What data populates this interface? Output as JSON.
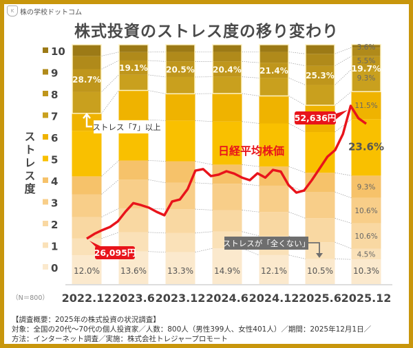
{
  "logo": {
    "text": "株の学校ドットコム"
  },
  "title": "株式投資のストレス度の移り変わり",
  "chart_data": {
    "type": "bar",
    "stacked": true,
    "unit": "%",
    "categories": [
      "2022.12",
      "2023.6",
      "2023.12",
      "2024.6",
      "2024.12",
      "2025.6",
      "2025.12"
    ],
    "legend_title": "ストレス度",
    "levels": [
      "0",
      "1",
      "2",
      "3",
      "4",
      "5",
      "6",
      "7",
      "8",
      "9",
      "10"
    ],
    "level_colors": [
      "#FBE9CD",
      "#FAE1B8",
      "#F9D8A2",
      "#F8CE89",
      "#F6C26A",
      "#F9C000",
      "#EFB300",
      "#C9A01E",
      "#BF961C",
      "#B08A1A",
      "#9C7A16"
    ],
    "series_values": [
      [
        12.0,
        7.0,
        9.0,
        9.5,
        7.5,
        19.0,
        7.3,
        9.0,
        9.5,
        5.5,
        4.7
      ],
      [
        13.6,
        8.0,
        10.0,
        12.0,
        8.0,
        17.0,
        12.3,
        6.5,
        6.0,
        3.5,
        3.1
      ],
      [
        13.3,
        8.0,
        10.0,
        11.0,
        9.0,
        17.0,
        11.2,
        7.0,
        6.5,
        4.0,
        3.0
      ],
      [
        14.9,
        7.0,
        9.0,
        11.0,
        8.0,
        18.0,
        11.7,
        7.0,
        6.4,
        4.0,
        3.0
      ],
      [
        12.1,
        8.0,
        10.0,
        11.0,
        8.0,
        18.0,
        11.5,
        7.5,
        6.4,
        4.5,
        3.0
      ],
      [
        10.5,
        7.0,
        10.0,
        11.0,
        8.0,
        17.0,
        11.2,
        8.5,
        8.0,
        5.0,
        3.8
      ],
      [
        10.3,
        4.5,
        10.6,
        10.6,
        9.3,
        23.6,
        11.5,
        9.3,
        5.5,
        3.6,
        1.3
      ]
    ],
    "level0_labels": [
      "12.0%",
      "13.6%",
      "13.3%",
      "14.9%",
      "12.1%",
      "10.5%",
      "10.3%"
    ],
    "stress7plus_labels": [
      "28.7%",
      "19.1%",
      "20.5%",
      "20.4%",
      "21.4%",
      "25.3%",
      "19.7%"
    ],
    "last_column_labels": {
      "1": "4.5%",
      "2": "10.6%",
      "3": "10.6%",
      "4": "9.3%",
      "5": "23.6%",
      "6": "11.5%",
      "7": "9.3%",
      "8": "5.5%",
      "9": "3.6%"
    },
    "sample_note": "（N＝800）",
    "line_series": {
      "name": "日経平均株価",
      "color": "#E8141B",
      "dates": [
        "2022-12",
        "2023-01",
        "2023-02",
        "2023-03",
        "2023-04",
        "2023-05",
        "2023-06",
        "2023-07",
        "2023-08",
        "2023-09",
        "2023-10",
        "2023-11",
        "2023-12",
        "2024-01",
        "2024-02",
        "2024-03",
        "2024-04",
        "2024-05",
        "2024-06",
        "2024-07",
        "2024-08",
        "2024-09",
        "2024-10",
        "2024-11",
        "2024-12",
        "2025-01",
        "2025-02",
        "2025-03",
        "2025-04",
        "2025-05",
        "2025-06",
        "2025-07",
        "2025-08",
        "2025-09",
        "2025-10",
        "2025-11",
        "2025-12"
      ],
      "values": [
        26095,
        27060,
        27800,
        28430,
        29540,
        31500,
        33200,
        32800,
        32300,
        31460,
        30770,
        33520,
        33930,
        36000,
        39700,
        40000,
        38600,
        38900,
        39570,
        39100,
        38300,
        37780,
        39160,
        38300,
        39840,
        39500,
        36800,
        35300,
        35720,
        37800,
        40120,
        42460,
        43800,
        46990,
        52636,
        50160,
        49060
      ],
      "start_label": "26,095円",
      "peak_label": "52,636円"
    },
    "annotations": {
      "stress7": "ストレス「7」以上",
      "none": "ストレスが「全くない」"
    }
  },
  "footer": {
    "line1": "【調査概要：2025年の株式投資の状況調査】",
    "line2": "対象：全国の20代～70代の個人投資家／人数：800人（男性399人、女性401人）／期間：2025年12月1日／",
    "line3": "方法：インターネット調査／実施：株式会社トレジャープロモート"
  }
}
